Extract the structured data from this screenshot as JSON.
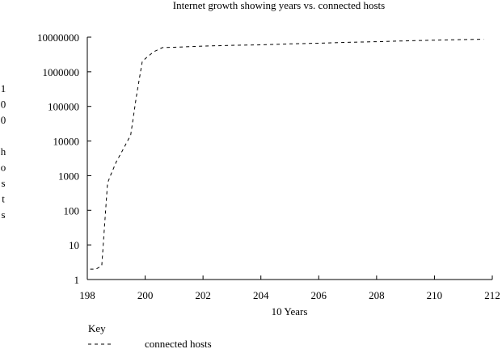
{
  "chart_data": {
    "type": "line",
    "title": "Internet growth showing years vs. connected hosts",
    "xlabel": "10 Years",
    "ylabel": "100 hosts",
    "y_scale": "log",
    "xlim": [
      198,
      212
    ],
    "ylim": [
      1,
      10000000
    ],
    "x_ticks": [
      198,
      200,
      202,
      204,
      206,
      208,
      210,
      212
    ],
    "x_tick_labels": [
      "198",
      "200",
      "202",
      "204",
      "206",
      "208",
      "210",
      "212"
    ],
    "y_ticks": [
      1,
      10,
      100,
      1000,
      10000,
      100000,
      1000000,
      10000000
    ],
    "y_tick_labels": [
      "1",
      "10",
      "100",
      "1000",
      "10000",
      "100000",
      "1000000",
      "10000000"
    ],
    "grid": false,
    "legend": {
      "title": "Key",
      "placement": "bottom-left",
      "entries": [
        "connected hosts"
      ]
    },
    "series": [
      {
        "name": "connected hosts",
        "line_style": "dashed",
        "color": "#000000",
        "x": [
          198.1,
          198.3,
          198.5,
          198.7,
          198.8,
          199.0,
          199.2,
          199.5,
          199.7,
          199.9,
          200.1,
          200.3,
          200.6,
          201.0,
          202.0,
          203.0,
          204.0,
          205.0,
          206.0,
          207.0,
          208.0,
          209.0,
          210.0,
          211.0,
          211.7
        ],
        "y": [
          2,
          2,
          2.5,
          600,
          1000,
          2500,
          5000,
          15000,
          200000,
          2000000,
          2800000,
          3800000,
          5000000,
          5100000,
          5500000,
          5800000,
          6000000,
          6400000,
          6700000,
          7100000,
          7400000,
          7800000,
          8200000,
          8500000,
          8700000
        ]
      }
    ]
  }
}
